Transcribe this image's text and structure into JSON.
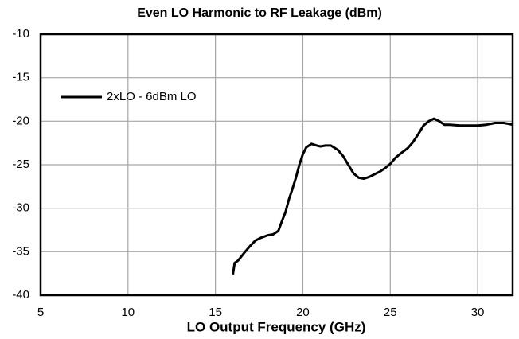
{
  "chart_data": {
    "type": "line",
    "title": "Even LO Harmonic to RF Leakage (dBm)",
    "x_label": "LO Output Frequency (GHz)",
    "x": [
      16.0,
      16.1,
      16.3,
      16.5,
      16.7,
      17.0,
      17.3,
      17.6,
      18.0,
      18.3,
      18.6,
      18.8,
      19.0,
      19.2,
      19.4,
      19.6,
      19.8,
      20.0,
      20.2,
      20.5,
      20.8,
      21.0,
      21.3,
      21.6,
      22.0,
      22.3,
      22.6,
      22.9,
      23.2,
      23.5,
      23.8,
      24.1,
      24.4,
      24.7,
      25.0,
      25.3,
      25.6,
      26.0,
      26.3,
      26.6,
      26.9,
      27.2,
      27.5,
      27.8,
      28.1,
      28.4,
      29.0,
      29.5,
      30.0,
      30.5,
      31.0,
      31.5,
      32.0
    ],
    "series": [
      {
        "name": "2xLO - 6dBm LO",
        "color": "#000000",
        "values": [
          -37.6,
          -36.3,
          -36.0,
          -35.5,
          -35.0,
          -34.3,
          -33.7,
          -33.4,
          -33.1,
          -33.0,
          -32.6,
          -31.5,
          -30.5,
          -29.0,
          -27.8,
          -26.5,
          -25.0,
          -23.8,
          -23.0,
          -22.6,
          -22.8,
          -22.9,
          -22.8,
          -22.8,
          -23.3,
          -24.0,
          -25.0,
          -26.0,
          -26.5,
          -26.6,
          -26.4,
          -26.1,
          -25.8,
          -25.4,
          -24.9,
          -24.2,
          -23.7,
          -23.1,
          -22.4,
          -21.5,
          -20.5,
          -20.0,
          -19.7,
          -20.0,
          -20.4,
          -20.4,
          -20.5,
          -20.5,
          -20.5,
          -20.4,
          -20.2,
          -20.2,
          -20.4
        ]
      }
    ],
    "xlim": [
      5,
      32
    ],
    "xticks": [
      5,
      10,
      15,
      20,
      25,
      30
    ],
    "ylim": [
      -40,
      -10
    ],
    "yticks": [
      -40,
      -35,
      -30,
      -25,
      -20,
      -15,
      -10
    ],
    "grid": true,
    "legend": "upper left"
  }
}
